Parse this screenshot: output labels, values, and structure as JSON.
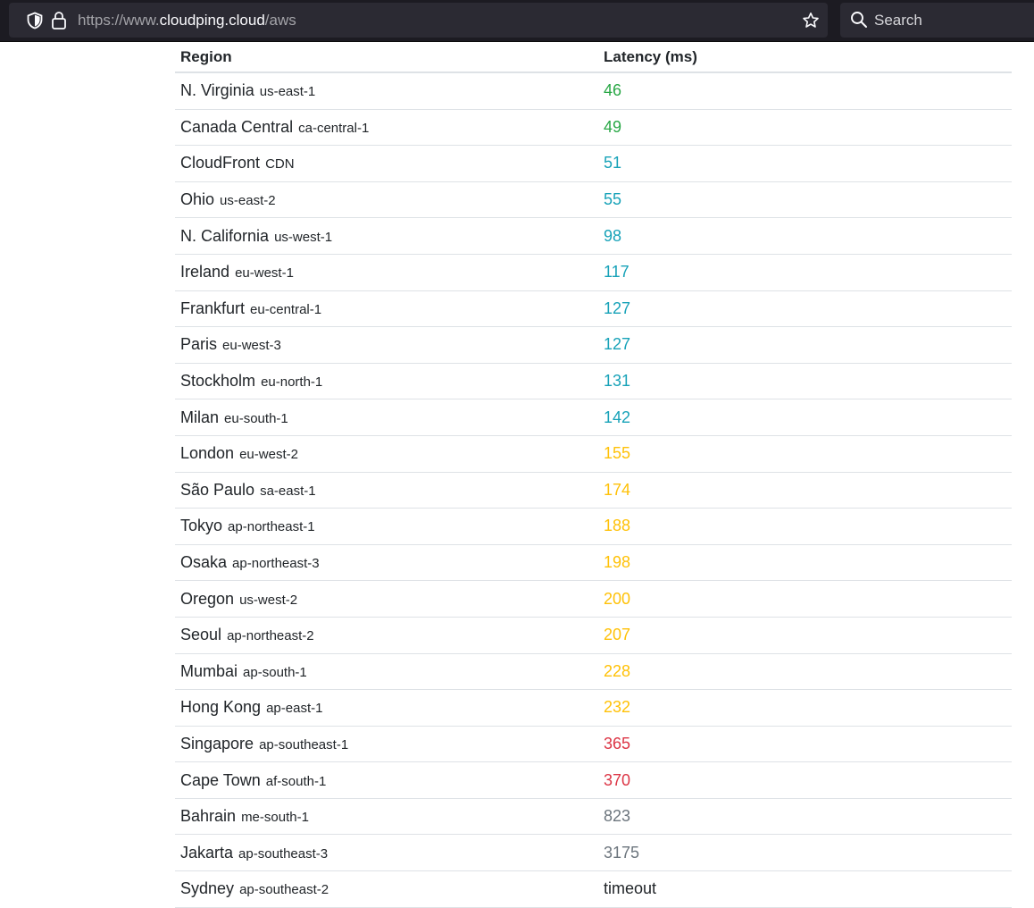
{
  "browser": {
    "url_prefix": "https://www.",
    "url_host": "cloudping.cloud",
    "url_path": "/aws",
    "search_placeholder": "Search"
  },
  "table": {
    "headers": [
      "Region",
      "Latency (ms)"
    ],
    "rows": [
      {
        "name": "N. Virginia",
        "code": "us-east-1",
        "latency": "46",
        "color": "#28a745"
      },
      {
        "name": "Canada Central",
        "code": "ca-central-1",
        "latency": "49",
        "color": "#28a745"
      },
      {
        "name": "CloudFront",
        "code": "CDN",
        "latency": "51",
        "color": "#17a2b8"
      },
      {
        "name": "Ohio",
        "code": "us-east-2",
        "latency": "55",
        "color": "#17a2b8"
      },
      {
        "name": "N. California",
        "code": "us-west-1",
        "latency": "98",
        "color": "#17a2b8"
      },
      {
        "name": "Ireland",
        "code": "eu-west-1",
        "latency": "117",
        "color": "#17a2b8"
      },
      {
        "name": "Frankfurt",
        "code": "eu-central-1",
        "latency": "127",
        "color": "#17a2b8"
      },
      {
        "name": "Paris",
        "code": "eu-west-3",
        "latency": "127",
        "color": "#17a2b8"
      },
      {
        "name": "Stockholm",
        "code": "eu-north-1",
        "latency": "131",
        "color": "#17a2b8"
      },
      {
        "name": "Milan",
        "code": "eu-south-1",
        "latency": "142",
        "color": "#17a2b8"
      },
      {
        "name": "London",
        "code": "eu-west-2",
        "latency": "155",
        "color": "#ffc107"
      },
      {
        "name": "São Paulo",
        "code": "sa-east-1",
        "latency": "174",
        "color": "#ffc107"
      },
      {
        "name": "Tokyo",
        "code": "ap-northeast-1",
        "latency": "188",
        "color": "#ffc107"
      },
      {
        "name": "Osaka",
        "code": "ap-northeast-3",
        "latency": "198",
        "color": "#ffc107"
      },
      {
        "name": "Oregon",
        "code": "us-west-2",
        "latency": "200",
        "color": "#ffc107"
      },
      {
        "name": "Seoul",
        "code": "ap-northeast-2",
        "latency": "207",
        "color": "#ffc107"
      },
      {
        "name": "Mumbai",
        "code": "ap-south-1",
        "latency": "228",
        "color": "#ffc107"
      },
      {
        "name": "Hong Kong",
        "code": "ap-east-1",
        "latency": "232",
        "color": "#ffc107"
      },
      {
        "name": "Singapore",
        "code": "ap-southeast-1",
        "latency": "365",
        "color": "#dc3545"
      },
      {
        "name": "Cape Town",
        "code": "af-south-1",
        "latency": "370",
        "color": "#dc3545"
      },
      {
        "name": "Bahrain",
        "code": "me-south-1",
        "latency": "823",
        "color": "#6c757d"
      },
      {
        "name": "Jakarta",
        "code": "ap-southeast-3",
        "latency": "3175",
        "color": "#6c757d"
      },
      {
        "name": "Sydney",
        "code": "ap-southeast-2",
        "latency": "timeout",
        "color": "#212529"
      }
    ]
  }
}
